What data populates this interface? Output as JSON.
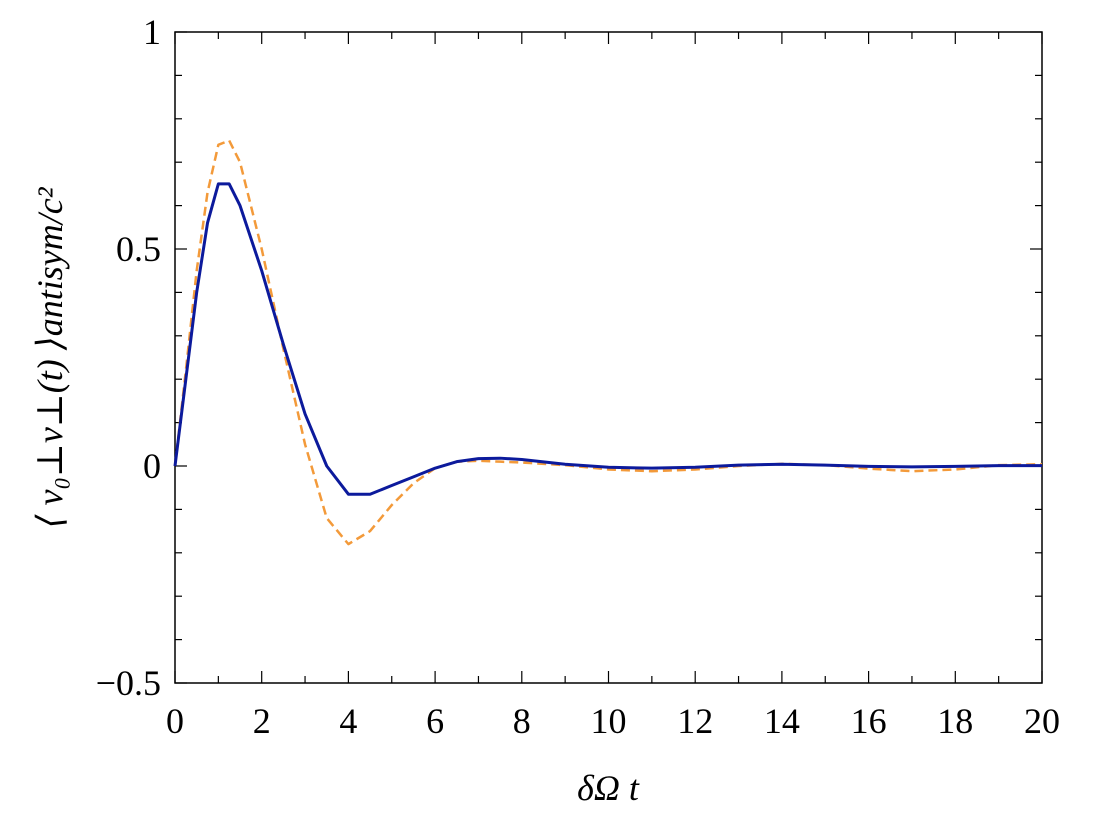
{
  "chart_data": {
    "type": "line",
    "xlabel": "δΩ t",
    "ylabel": "⟨ v₀⊥v⊥(t) ⟩antisym/c²",
    "x": [
      0,
      0.25,
      0.5,
      0.75,
      1,
      1.25,
      1.5,
      2,
      2.5,
      3,
      3.5,
      4,
      4.5,
      5,
      5.5,
      6,
      6.5,
      7,
      7.5,
      8,
      9,
      10,
      11,
      12,
      13,
      14,
      15,
      16,
      17,
      18,
      19,
      20
    ],
    "series": [
      {
        "name": "dashed",
        "color": "#f39a3a",
        "dash": true,
        "values": [
          0,
          0.22,
          0.45,
          0.63,
          0.74,
          0.75,
          0.7,
          0.5,
          0.27,
          0.05,
          -0.12,
          -0.18,
          -0.15,
          -0.09,
          -0.04,
          -0.005,
          0.01,
          0.012,
          0.01,
          0.008,
          0.002,
          -0.008,
          -0.012,
          -0.008,
          0,
          0.005,
          0.002,
          -0.006,
          -0.012,
          -0.008,
          0.002,
          0.004
        ]
      },
      {
        "name": "solid",
        "color": "#0c1a9c",
        "dash": false,
        "values": [
          0,
          0.2,
          0.4,
          0.56,
          0.65,
          0.65,
          0.6,
          0.45,
          0.28,
          0.12,
          0,
          -0.065,
          -0.065,
          -0.045,
          -0.025,
          -0.005,
          0.01,
          0.017,
          0.018,
          0.015,
          0.004,
          -0.003,
          -0.005,
          -0.003,
          0.002,
          0.004,
          0.002,
          -0.001,
          -0.002,
          -0.001,
          0.001,
          0.001
        ]
      }
    ],
    "xlim": [
      0,
      20
    ],
    "ylim": [
      -0.5,
      1
    ],
    "xticks": [
      0,
      2,
      4,
      6,
      8,
      10,
      12,
      14,
      16,
      18,
      20
    ],
    "xminorticks": [
      1,
      3,
      5,
      7,
      9,
      11,
      13,
      15,
      17,
      19
    ],
    "yticks": [
      {
        "value": -0.5,
        "label": "−0.5"
      },
      0,
      0.5,
      1
    ],
    "yminorticks": [
      -0.4,
      -0.3,
      -0.2,
      -0.1,
      0.1,
      0.2,
      0.3,
      0.4,
      0.6,
      0.7,
      0.8,
      0.9
    ]
  }
}
